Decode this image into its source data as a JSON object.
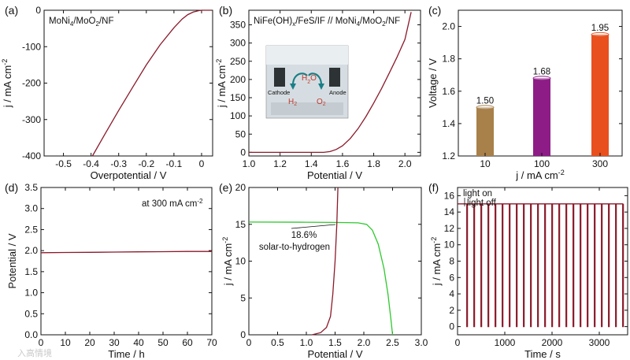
{
  "watermark": "入高情境",
  "chart_data": [
    {
      "panel": "(a)",
      "type": "line",
      "annotations": [
        "MoNi4/MoO2/NF"
      ],
      "xlabel": "Overpotential / V",
      "ylabel": "j / mA cm-2",
      "xlim": [
        -0.57,
        0.04
      ],
      "ylim": [
        -400,
        0
      ],
      "xticks": [
        "-0.5",
        "-0.4",
        "-0.3",
        "-0.2",
        "-0.1",
        "0"
      ],
      "yticks": [
        "-400",
        "-300",
        "-200",
        "-100",
        "0"
      ],
      "line_color": "#8a1a2a",
      "series": [
        {
          "x": [
            -0.395,
            -0.35,
            -0.3,
            -0.25,
            -0.2,
            -0.15,
            -0.1,
            -0.07,
            -0.05,
            -0.03,
            -0.02,
            -0.01,
            0.0,
            0.02,
            0.035
          ],
          "y": [
            -400,
            -340,
            -275,
            -212,
            -150,
            -95,
            -48,
            -24,
            -12,
            -5,
            -3,
            -1,
            0,
            0,
            0
          ]
        }
      ]
    },
    {
      "panel": "(b)",
      "type": "line",
      "annotations": [
        "NiFe(OH)x/FeS/IF // MoNi4/MoO2/NF"
      ],
      "xlabel": "Potential / V",
      "ylabel": "j / mA cm-2",
      "xlim": [
        1.0,
        2.1
      ],
      "ylim": [
        -10,
        390
      ],
      "xticks": [
        "1.0",
        "1.2",
        "1.4",
        "1.6",
        "1.8",
        "2.0"
      ],
      "yticks": [
        "0",
        "50",
        "100",
        "150",
        "200",
        "250",
        "300",
        "350"
      ],
      "line_color": "#8a1a2a",
      "inset_labels": [
        "H2O",
        "H2",
        "O2",
        "Cathode",
        "Anode"
      ],
      "series": [
        {
          "x": [
            1.0,
            1.2,
            1.4,
            1.48,
            1.52,
            1.56,
            1.6,
            1.65,
            1.7,
            1.75,
            1.8,
            1.85,
            1.9,
            1.95,
            2.0,
            2.04
          ],
          "y": [
            0,
            0,
            0,
            0,
            2,
            8,
            18,
            38,
            65,
            98,
            135,
            175,
            218,
            262,
            310,
            385
          ]
        }
      ]
    },
    {
      "panel": "(c)",
      "type": "bar",
      "xlabel": "j / mA cm-2",
      "ylabel": "Voltage / V",
      "ylim": [
        1.2,
        2.1
      ],
      "yticks": [
        "1.2",
        "1.4",
        "1.6",
        "1.8",
        "2.0"
      ],
      "categories": [
        "10",
        "100",
        "300"
      ],
      "values": [
        1.5,
        1.68,
        1.95
      ],
      "data_labels": [
        "1.50",
        "1.68",
        "1.95"
      ],
      "bar_colors": [
        "#a8804a",
        "#8e1c86",
        "#e8501e"
      ]
    },
    {
      "panel": "(d)",
      "type": "line",
      "annotations": [
        "at 300 mA cm-2"
      ],
      "xlabel": "Time / h",
      "ylabel": "Potential / V",
      "xlim": [
        0,
        70
      ],
      "ylim": [
        0,
        3.5
      ],
      "xticks": [
        "0",
        "10",
        "20",
        "30",
        "40",
        "50",
        "60",
        "70"
      ],
      "yticks": [
        "0.0",
        "0.5",
        "1.0",
        "1.5",
        "2.0",
        "2.5",
        "3.0",
        "3.5"
      ],
      "line_color": "#8a1a2a",
      "series": [
        {
          "x": [
            0,
            10,
            20,
            30,
            40,
            50,
            60,
            70
          ],
          "y": [
            1.95,
            1.955,
            1.96,
            1.965,
            1.97,
            1.975,
            1.98,
            1.98
          ]
        }
      ]
    },
    {
      "panel": "(e)",
      "type": "line",
      "annotations": [
        "18.6%",
        "solar-to-hydrogen"
      ],
      "xlabel": "Potential / V",
      "ylabel": "j / mA cm-2",
      "xlim": [
        0,
        3.0
      ],
      "ylim": [
        0,
        20
      ],
      "xticks": [
        "0",
        "0.5",
        "1.0",
        "1.5",
        "2.0",
        "2.5",
        "3.0"
      ],
      "yticks": [
        "0",
        "5",
        "10",
        "15",
        "20"
      ],
      "series": [
        {
          "color": "#2ec82e",
          "x": [
            0,
            1.0,
            1.5,
            1.9,
            2.05,
            2.15,
            2.25,
            2.35,
            2.42,
            2.47,
            2.5
          ],
          "y": [
            15.3,
            15.28,
            15.25,
            15.2,
            15.0,
            14.2,
            12.3,
            9.0,
            5.5,
            2.2,
            0
          ]
        },
        {
          "color": "#8a1a2a",
          "x": [
            1.1,
            1.25,
            1.35,
            1.42,
            1.46,
            1.5,
            1.53,
            1.55
          ],
          "y": [
            0,
            0.3,
            1.0,
            2.5,
            5.5,
            10,
            15,
            20
          ]
        }
      ]
    },
    {
      "panel": "(f)",
      "type": "line",
      "annotations": [
        "light on",
        "light off"
      ],
      "xlabel": "Time / s",
      "ylabel": "j / mA cm-2",
      "xlim": [
        0,
        3600
      ],
      "ylim": [
        -1,
        17
      ],
      "xticks": [
        "0",
        "1000",
        "2000",
        "3000"
      ],
      "yticks": [
        "0",
        "2",
        "4",
        "6",
        "8",
        "10",
        "12",
        "14",
        "16"
      ],
      "line_color": "#8a1a2a",
      "on_level": 15.0,
      "off_level": 0.0,
      "cycle_period": 150,
      "on_duration": 135,
      "cycles": 24
    }
  ]
}
